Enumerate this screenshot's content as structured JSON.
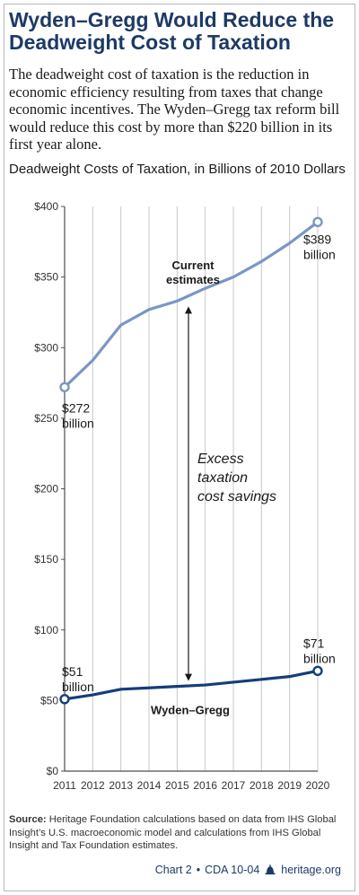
{
  "header": {
    "title": "Wyden–Gregg Would Reduce the Deadweight Cost of Taxation",
    "intro": "The deadweight cost of taxation is the reduction in economic efficiency resulting from taxes that change economic incentives. The Wyden–Gregg tax reform bill would reduce this cost by more than $220 billion in its first year alone."
  },
  "chart_data": {
    "type": "line",
    "title": "Deadweight Costs of Taxation, in Billions of 2010 Dollars",
    "x": [
      2011,
      2012,
      2013,
      2014,
      2015,
      2016,
      2017,
      2018,
      2019,
      2020
    ],
    "x_tick_labels": [
      "2011",
      "2012",
      "2013",
      "2014",
      "2015",
      "2016",
      "2017",
      "2018",
      "2019",
      "2020"
    ],
    "y_tick_labels": [
      "$0",
      "$50",
      "$100",
      "$150",
      "$200",
      "$250",
      "$300",
      "$350",
      "$400"
    ],
    "ylim": [
      0,
      400
    ],
    "y_ticks": [
      0,
      50,
      100,
      150,
      200,
      250,
      300,
      350,
      400
    ],
    "grid": "vertical",
    "series": [
      {
        "name": "Current estimates",
        "color": "#7a96c4",
        "values": [
          272,
          291,
          316,
          327,
          333,
          342,
          350,
          361,
          374,
          389
        ]
      },
      {
        "name": "Wyden–Gregg",
        "color": "#143d7a",
        "values": [
          51,
          54,
          58,
          59,
          60,
          61,
          63,
          65,
          67,
          71
        ]
      }
    ],
    "annotations": {
      "current_start": [
        "$272",
        "billion"
      ],
      "current_end": [
        "$389",
        "billion"
      ],
      "wg_start": [
        "$51",
        "billion"
      ],
      "wg_end": [
        "$71",
        "billion"
      ],
      "gap_label": [
        "Excess",
        "taxation",
        "cost savings"
      ],
      "gap_year": 2015.5
    }
  },
  "footer": {
    "source_label": "Source:",
    "source_text": "Heritage Foundation calculations based on data from IHS Global Insight’s U.S. macroeconomic model and calculations from IHS Global Insight and Tax Foundation estimates.",
    "chart_id": "Chart 2",
    "sep": "•",
    "doc_id": "CDA 10-04",
    "site": "heritage.org"
  }
}
